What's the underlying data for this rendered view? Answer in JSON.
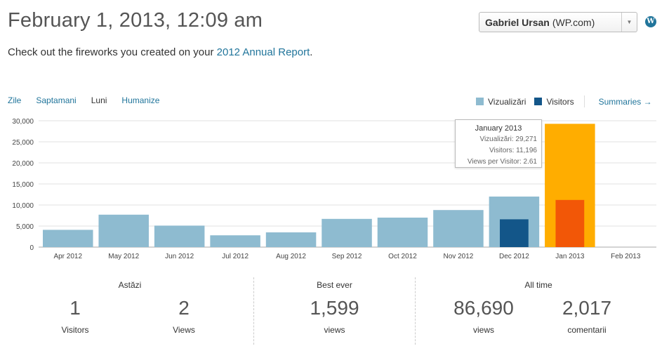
{
  "header": {
    "date_title": "February 1, 2013, 12:09 am",
    "site_select_name": "Gabriel Ursan",
    "site_select_tag": "(WP.com)",
    "wp_logo_icon": "wordpress-icon"
  },
  "intro": {
    "prefix": "Check out the fireworks you created on your ",
    "link": "2012 Annual Report",
    "suffix": "."
  },
  "tabs": [
    {
      "label": "Zile",
      "active": false
    },
    {
      "label": "Saptamani",
      "active": false
    },
    {
      "label": "Luni",
      "active": true
    },
    {
      "label": "Humanize",
      "active": false
    }
  ],
  "legend": {
    "views_label": "Vizualizări",
    "visitors_label": "Visitors",
    "summaries_label": "Summaries",
    "summaries_icon": "arrow-right-icon"
  },
  "colors": {
    "views": "#8ebbd0",
    "visitors": "#135689",
    "views_highlight": "#ffad00",
    "visitors_highlight": "#f25707",
    "link": "#21759b"
  },
  "chart_data": {
    "type": "bar",
    "categories": [
      "Apr 2012",
      "May 2012",
      "Jun 2012",
      "Jul 2012",
      "Aug 2012",
      "Sep 2012",
      "Oct 2012",
      "Nov 2012",
      "Dec 2012",
      "Jan 2013",
      "Feb 2013"
    ],
    "series": [
      {
        "name": "Vizualizări",
        "values": [
          4100,
          7700,
          5100,
          2800,
          3500,
          6700,
          7000,
          8800,
          12000,
          29271,
          0
        ]
      },
      {
        "name": "Visitors",
        "values": [
          null,
          null,
          null,
          null,
          null,
          null,
          null,
          null,
          6600,
          11196,
          null
        ]
      }
    ],
    "highlight_index": 9,
    "ylim": [
      0,
      30000
    ],
    "yticks": [
      "30,000",
      "25,000",
      "20,000",
      "15,000",
      "10,000",
      "5,000",
      "0"
    ],
    "ytick_values": [
      30000,
      25000,
      20000,
      15000,
      10000,
      5000,
      0
    ],
    "grid": true
  },
  "tooltip": {
    "title": "January 2013",
    "views": "Vizualizări: 29,271",
    "visitors": "Visitors: 11,196",
    "ratio": "Views per Visitor: 2.61"
  },
  "stats": {
    "today": {
      "title": "Astăzi",
      "visitors_value": "1",
      "visitors_label": "Visitors",
      "views_value": "2",
      "views_label": "Views"
    },
    "best": {
      "title": "Best ever",
      "value": "1,599",
      "label": "views"
    },
    "all_time": {
      "title": "All time",
      "views_value": "86,690",
      "views_label": "views",
      "comments_value": "2,017",
      "comments_label": "comentarii"
    }
  }
}
